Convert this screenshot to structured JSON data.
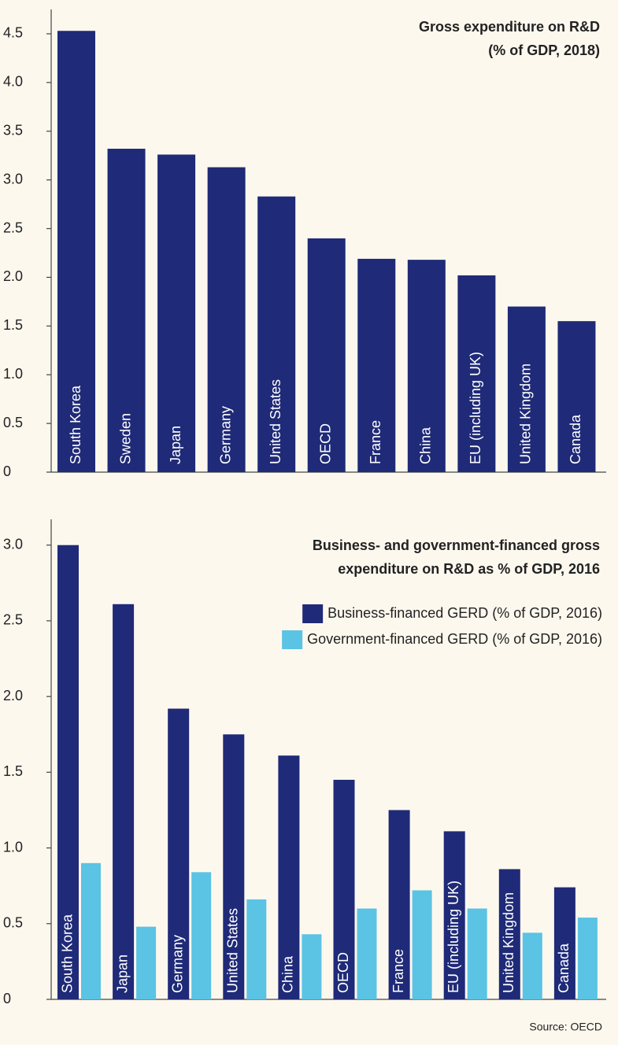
{
  "chart_data": [
    {
      "type": "bar",
      "title": [
        "Gross expenditure on R&D",
        "(% of GDP, 2018)"
      ],
      "categories": [
        "South Korea",
        "Sweden",
        "Japan",
        "Germany",
        "United States",
        "OECD",
        "France",
        "China",
        "EU (including UK)",
        "United Kingdom",
        "Canada"
      ],
      "values": [
        4.53,
        3.32,
        3.26,
        3.13,
        2.83,
        2.4,
        2.19,
        2.18,
        2.02,
        1.7,
        1.55
      ],
      "color": "#1f2a78",
      "ylim": [
        0,
        4.75
      ],
      "yticks": [
        0,
        0.5,
        {
          "value": 1,
          "label": "1.0"
        },
        1.5,
        {
          "value": 2,
          "label": "2.0"
        },
        2.5,
        {
          "value": 3,
          "label": "3.0"
        },
        3.5,
        {
          "value": 4,
          "label": "4.0"
        },
        4.5
      ]
    },
    {
      "type": "grouped-bar",
      "title": [
        "Business- and government-financed gross",
        "expenditure on R&D as % of GDP, 2016"
      ],
      "categories": [
        "South Korea",
        "Japan",
        "Germany",
        "United States",
        "China",
        "OECD",
        "France",
        "EU (including UK)",
        "United Kingdom",
        "Canada"
      ],
      "series": [
        {
          "name": "Business-financed GERD (% of GDP, 2016)",
          "color": "#1f2a78",
          "values": [
            3.0,
            2.61,
            1.92,
            1.75,
            1.61,
            1.45,
            1.25,
            1.11,
            0.86,
            0.74
          ]
        },
        {
          "name": "Government-financed GERD (% of GDP, 2016)",
          "color": "#5bc3e4",
          "values": [
            0.9,
            0.48,
            0.84,
            0.66,
            0.43,
            0.6,
            0.72,
            0.6,
            0.44,
            0.54
          ]
        }
      ],
      "ylim": [
        0,
        3.17
      ],
      "yticks": [
        0,
        0.5,
        {
          "value": 1,
          "label": "1.0"
        },
        1.5,
        {
          "value": 2,
          "label": "2.0"
        },
        2.5,
        {
          "value": 3,
          "label": "3.0"
        }
      ],
      "source": "Source: OECD"
    }
  ]
}
